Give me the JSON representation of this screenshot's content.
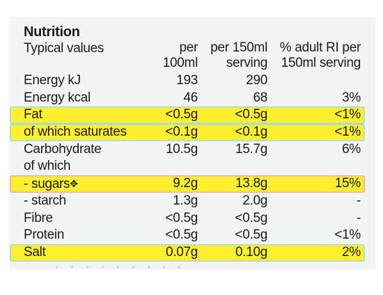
{
  "title": "Nutrition",
  "header": {
    "label": "Typical values",
    "col1": [
      "per",
      "100ml"
    ],
    "col2": [
      "per 150ml",
      "serving"
    ],
    "col3": [
      "% adult RI per",
      "150ml serving"
    ]
  },
  "rows": [
    {
      "label": "Energy kJ",
      "v1": "193",
      "v2": "290",
      "v3": "",
      "highlight": "none"
    },
    {
      "label": "Energy kcal",
      "v1": "46",
      "v2": "68",
      "v3": "3%",
      "highlight": "none"
    },
    {
      "label": "Fat",
      "v1": "<0.5g",
      "v2": "<0.5g",
      "v3": "<1%",
      "highlight": "blue"
    },
    {
      "label": "of which saturates",
      "v1": "<0.1g",
      "v2": "<0.1g",
      "v3": "<1%",
      "highlight": "blue"
    },
    {
      "label": "Carbohydrate",
      "v1": "10.5g",
      "v2": "15.7g",
      "v3": "6%",
      "highlight": "none"
    },
    {
      "label": "of which",
      "v1": "",
      "v2": "",
      "v3": "",
      "highlight": "none"
    },
    {
      "label": "- sugars",
      "marker": "✥",
      "v1": "9.2g",
      "v2": "13.8g",
      "v3": "15%",
      "highlight": "pink"
    },
    {
      "label": "- starch",
      "v1": "1.3g",
      "v2": "2.0g",
      "v3": "-",
      "highlight": "none"
    },
    {
      "label": "Fibre",
      "v1": "<0.5g",
      "v2": "<0.5g",
      "v3": "-",
      "highlight": "none"
    },
    {
      "label": "Protein",
      "v1": "<0.5g",
      "v2": "<0.5g",
      "v3": "<1%",
      "highlight": "none"
    },
    {
      "label": "Salt",
      "v1": "0.07g",
      "v2": "0.10g",
      "v3": "2%",
      "highlight": "blue"
    }
  ],
  "colors": {
    "highlight": "#fcef2d",
    "outline_blue": "#9fd7ee",
    "outline_pink": "#f0a6b8",
    "panel": "#f2f3f3"
  }
}
